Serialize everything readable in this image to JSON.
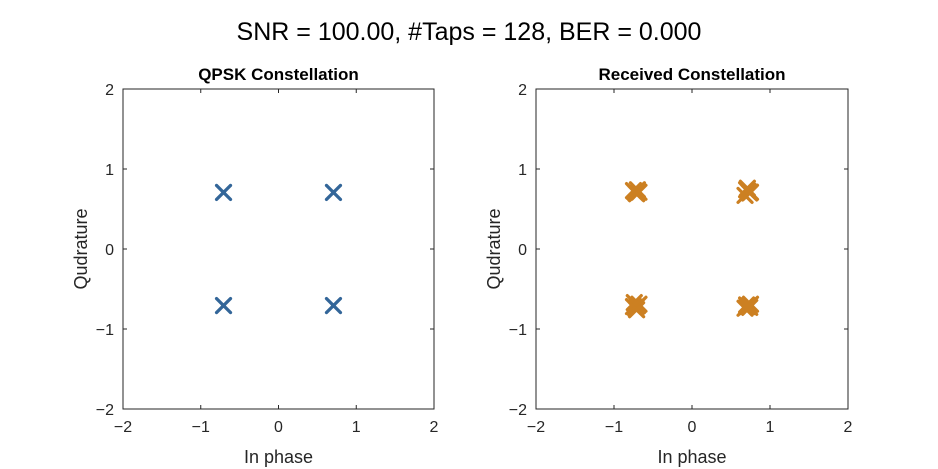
{
  "figure": {
    "suptitle": "SNR = 100.00, #Taps = 128, BER = 0.000"
  },
  "chart_data": [
    {
      "type": "scatter",
      "title": "QPSK Constellation",
      "xlabel": "In phase",
      "ylabel": "Qudrature",
      "xlim": [
        -2,
        2
      ],
      "ylim": [
        -2,
        2
      ],
      "xticks": [
        -2,
        -1,
        0,
        1,
        2
      ],
      "yticks": [
        -2,
        -1,
        0,
        1,
        2
      ],
      "marker": "x",
      "color": "#336699",
      "grid": false,
      "series": [
        {
          "x": [
            -0.707,
            0.707,
            -0.707,
            0.707
          ],
          "y": [
            0.707,
            0.707,
            -0.707,
            -0.707
          ]
        }
      ]
    },
    {
      "type": "scatter",
      "title": "Received Constellation",
      "xlabel": "In phase",
      "ylabel": "Qudrature",
      "xlim": [
        -2,
        2
      ],
      "ylim": [
        -2,
        2
      ],
      "xticks": [
        -2,
        -1,
        0,
        1,
        2
      ],
      "yticks": [
        -2,
        -1,
        0,
        1,
        2
      ],
      "marker": "x",
      "color": "#CC8022",
      "grid": false,
      "series": [
        {
          "x": [
            -0.74,
            -0.7,
            -0.72,
            -0.68,
            -0.75,
            -0.71,
            0.7,
            0.74,
            0.72,
            0.68,
            0.75,
            0.71,
            -0.74,
            -0.7,
            -0.72,
            -0.68,
            -0.75,
            -0.71,
            0.7,
            0.74,
            0.72,
            0.68,
            0.75,
            0.71
          ],
          "y": [
            0.72,
            0.74,
            0.7,
            0.71,
            0.73,
            0.69,
            0.74,
            0.7,
            0.72,
            0.67,
            0.71,
            0.76,
            -0.67,
            -0.71,
            -0.74,
            -0.69,
            -0.72,
            -0.76,
            -0.7,
            -0.73,
            -0.71,
            -0.74,
            -0.69,
            -0.72
          ]
        }
      ]
    }
  ]
}
